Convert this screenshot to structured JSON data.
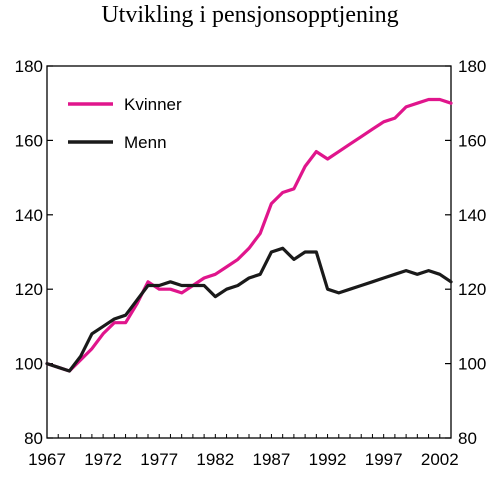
{
  "chart_data": {
    "type": "line",
    "title": "Utvikling i pensjonsopptjening",
    "xlabel": "",
    "ylabel": "",
    "xlim": [
      1967,
      2003
    ],
    "ylim": [
      80,
      180
    ],
    "y_ticks": [
      80,
      100,
      120,
      140,
      160,
      180
    ],
    "x_ticks": [
      1967,
      1972,
      1977,
      1982,
      1987,
      1992,
      1997,
      2002
    ],
    "legend_position": "top-left",
    "grid": false,
    "right_axis": true,
    "series": [
      {
        "name": "Kvinner",
        "color": "#e0158c",
        "x": [
          1967,
          1968,
          1969,
          1970,
          1971,
          1972,
          1973,
          1974,
          1975,
          1976,
          1977,
          1978,
          1979,
          1980,
          1981,
          1982,
          1983,
          1984,
          1985,
          1986,
          1987,
          1988,
          1989,
          1990,
          1991,
          1992,
          1993,
          1994,
          1995,
          1996,
          1997,
          1998,
          1999,
          2000,
          2001,
          2002,
          2003
        ],
        "values": [
          100,
          99,
          98,
          101,
          104,
          108,
          111,
          111,
          116,
          122,
          120,
          120,
          119,
          121,
          123,
          124,
          126,
          128,
          131,
          135,
          143,
          146,
          147,
          153,
          157,
          155,
          157,
          159,
          161,
          163,
          165,
          166,
          169,
          170,
          171,
          171,
          170
        ]
      },
      {
        "name": "Menn",
        "color": "#1a1a1a",
        "x": [
          1967,
          1968,
          1969,
          1970,
          1971,
          1972,
          1973,
          1974,
          1975,
          1976,
          1977,
          1978,
          1979,
          1980,
          1981,
          1982,
          1983,
          1984,
          1985,
          1986,
          1987,
          1988,
          1989,
          1990,
          1991,
          1992,
          1993,
          1994,
          1995,
          1996,
          1997,
          1998,
          1999,
          2000,
          2001,
          2002,
          2003
        ],
        "values": [
          100,
          99,
          98,
          102,
          108,
          110,
          112,
          113,
          117,
          121,
          121,
          122,
          121,
          121,
          121,
          118,
          120,
          121,
          123,
          124,
          130,
          131,
          128,
          130,
          130,
          120,
          119,
          120,
          121,
          122,
          123,
          124,
          125,
          124,
          125,
          124,
          122
        ]
      }
    ]
  }
}
